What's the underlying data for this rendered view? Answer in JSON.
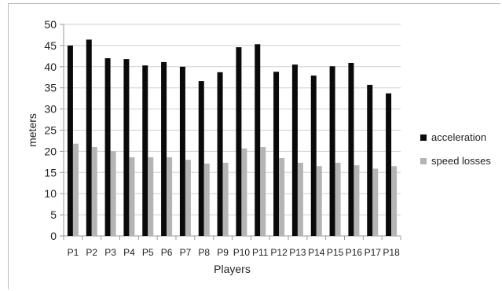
{
  "chart_data": {
    "type": "bar",
    "title": "",
    "xlabel": "Players",
    "ylabel": "meters",
    "ylim": [
      0,
      50
    ],
    "yticks": [
      0,
      5,
      10,
      15,
      20,
      25,
      30,
      35,
      40,
      45,
      50
    ],
    "grid": true,
    "legend_position": "right",
    "categories": [
      "P1",
      "P2",
      "P3",
      "P4",
      "P5",
      "P6",
      "P7",
      "P8",
      "P9",
      "P10",
      "P11",
      "P12",
      "P13",
      "P14",
      "P15",
      "P16",
      "P17",
      "P18"
    ],
    "series": [
      {
        "name": "acceleration",
        "color": "#0a0a0a",
        "values": [
          45.0,
          46.4,
          42.0,
          41.8,
          40.3,
          41.1,
          40.0,
          36.6,
          38.7,
          44.6,
          45.3,
          38.8,
          40.5,
          37.9,
          40.1,
          40.9,
          35.7,
          33.7
        ]
      },
      {
        "name": "speed losses",
        "color": "#b4b4b4",
        "values": [
          21.8,
          21.0,
          20.0,
          18.6,
          18.6,
          18.6,
          18.0,
          17.1,
          17.3,
          20.7,
          21.0,
          18.4,
          17.3,
          16.5,
          17.3,
          16.7,
          15.9,
          16.5
        ]
      }
    ]
  }
}
